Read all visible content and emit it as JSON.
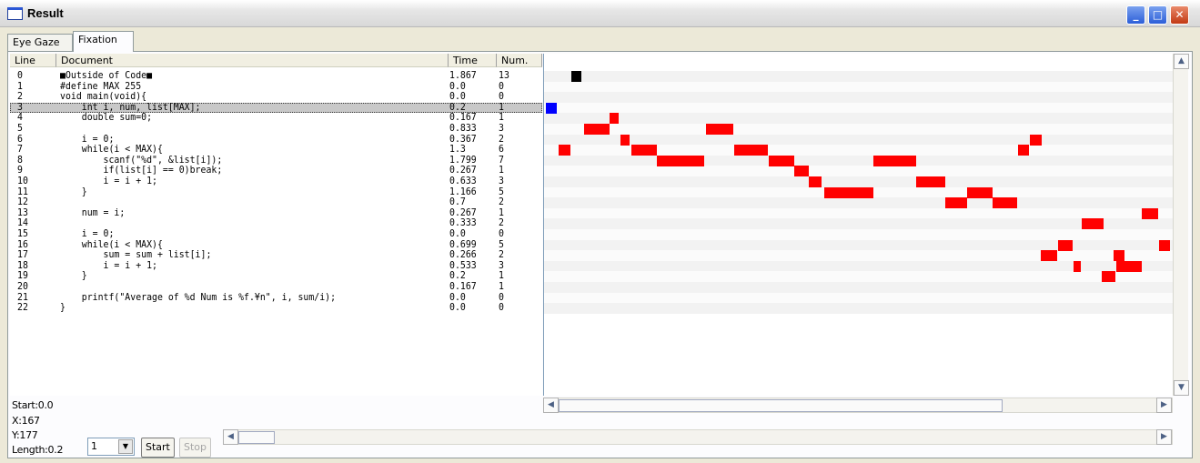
{
  "window": {
    "title": "Result",
    "min": "_",
    "max": "□",
    "close": "✕"
  },
  "tabs": [
    "Eye Gaze",
    "Fixation"
  ],
  "columns": {
    "line": "Line",
    "document": "Document",
    "time": "Time",
    "num": "Num."
  },
  "rows": [
    {
      "line": "0",
      "doc": "■Outside of Code■",
      "time": "1.867",
      "num": "13"
    },
    {
      "line": "1",
      "doc": "#define MAX 255",
      "time": "0.0",
      "num": "0"
    },
    {
      "line": "2",
      "doc": "void main(void){",
      "time": "0.0",
      "num": "0"
    },
    {
      "line": "3",
      "doc": "    int i, num, list[MAX];",
      "time": "0.2",
      "num": "1"
    },
    {
      "line": "4",
      "doc": "    double sum=0;",
      "time": "0.167",
      "num": "1"
    },
    {
      "line": "5",
      "doc": "",
      "time": "0.833",
      "num": "3"
    },
    {
      "line": "6",
      "doc": "    i = 0;",
      "time": "0.367",
      "num": "2"
    },
    {
      "line": "7",
      "doc": "    while(i < MAX){",
      "time": "1.3",
      "num": "6"
    },
    {
      "line": "8",
      "doc": "        scanf(\"%d\", &list[i]);",
      "time": "1.799",
      "num": "7"
    },
    {
      "line": "9",
      "doc": "        if(list[i] == 0)break;",
      "time": "0.267",
      "num": "1"
    },
    {
      "line": "10",
      "doc": "        i = i + 1;",
      "time": "0.633",
      "num": "3"
    },
    {
      "line": "11",
      "doc": "    }",
      "time": "1.166",
      "num": "5"
    },
    {
      "line": "12",
      "doc": "",
      "time": "0.7",
      "num": "2"
    },
    {
      "line": "13",
      "doc": "    num = i;",
      "time": "0.267",
      "num": "1"
    },
    {
      "line": "14",
      "doc": "",
      "time": "0.333",
      "num": "2"
    },
    {
      "line": "15",
      "doc": "    i = 0;",
      "time": "0.0",
      "num": "0"
    },
    {
      "line": "16",
      "doc": "    while(i < MAX){",
      "time": "0.699",
      "num": "5"
    },
    {
      "line": "17",
      "doc": "        sum = sum + list[i];",
      "time": "0.266",
      "num": "2"
    },
    {
      "line": "18",
      "doc": "        i = i + 1;",
      "time": "0.533",
      "num": "3"
    },
    {
      "line": "19",
      "doc": "    }",
      "time": "0.2",
      "num": "1"
    },
    {
      "line": "20",
      "doc": "",
      "time": "0.167",
      "num": "1"
    },
    {
      "line": "21",
      "doc": "    printf(\"Average of %d Num is %f.¥n\", i, sum/i);",
      "time": "0.0",
      "num": "0"
    },
    {
      "line": "22",
      "doc": "}",
      "time": "0.0",
      "num": "0"
    }
  ],
  "selected_line": 3,
  "status": {
    "start": "Start:0.0",
    "x": "X:167",
    "y": "Y:177",
    "length": "Length:0.2"
  },
  "speed_combo": {
    "value": "1"
  },
  "buttons": {
    "start": "Start",
    "stop": "Stop"
  },
  "colors": {
    "fixation": "#ff0000",
    "current": "#0000ff",
    "outside": "#000000"
  }
}
